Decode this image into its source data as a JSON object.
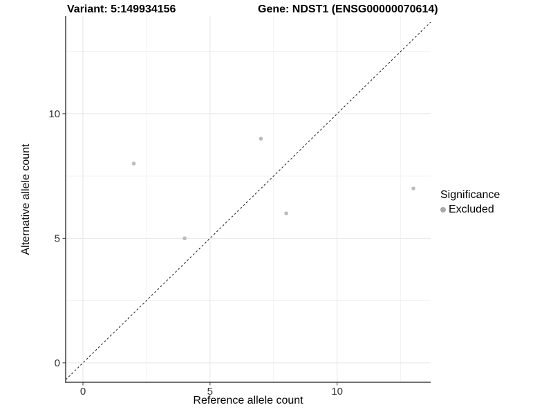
{
  "chart_data": {
    "type": "scatter",
    "title_left": "Variant: 5:149934156",
    "title_right": "Gene: NDST1 (ENSG00000070614)",
    "xlabel": "Reference allele count",
    "ylabel": "Alternative allele count",
    "xlim": [
      -0.68,
      13.68
    ],
    "ylim": [
      -0.78,
      13.93
    ],
    "x_major_ticks": [
      0,
      5,
      10
    ],
    "y_major_ticks": [
      0,
      5,
      10
    ],
    "x_minor_gridlines": [
      2.5,
      7.5,
      12.5
    ],
    "y_minor_gridlines": [
      2.5,
      7.5,
      12.5
    ],
    "grid": true,
    "legend_position": "right",
    "reference_line": {
      "type": "identity",
      "intercept": 0,
      "slope": 1,
      "style": "dashed",
      "color": "#1a1a1a"
    },
    "series": [
      {
        "name": "Excluded",
        "color": "#bcbcbc",
        "points": [
          {
            "x": 2,
            "y": 8
          },
          {
            "x": 4,
            "y": 5
          },
          {
            "x": 7,
            "y": 9
          },
          {
            "x": 8,
            "y": 6
          },
          {
            "x": 13,
            "y": 7
          }
        ]
      }
    ],
    "legend": {
      "title": "Significance",
      "items": [
        {
          "label": "Excluded",
          "color": "#a9a9a9"
        }
      ]
    },
    "colors": {
      "major_grid": "#e6e6e6",
      "minor_grid": "#f2f2f2",
      "axis_line": "#404040",
      "tick_label": "#303030",
      "point": "#bcbcbc"
    }
  }
}
